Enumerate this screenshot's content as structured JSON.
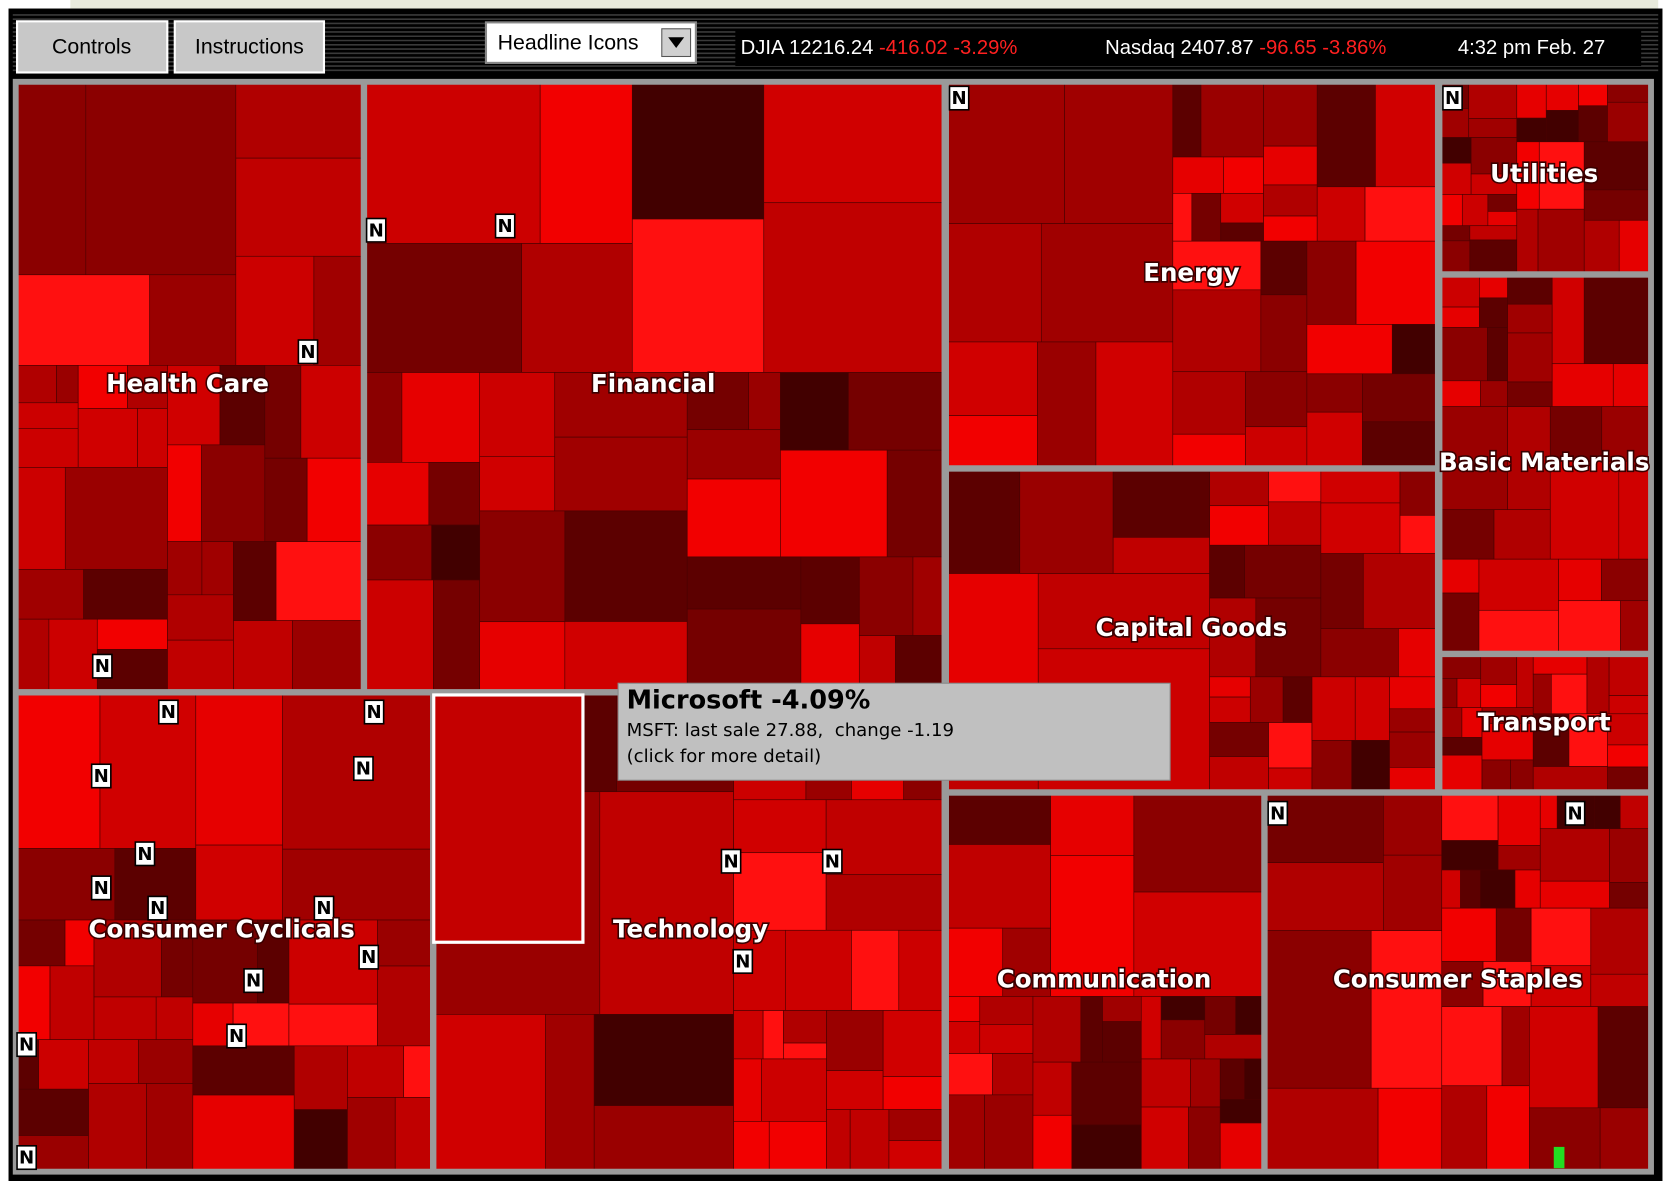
{
  "toolbar": {
    "controls_button": "Controls",
    "instructions_button": "Instructions",
    "view_select": "Headline Icons"
  },
  "ticker": {
    "djia": {
      "label": "DJIA 12216.24",
      "change": "-416.02",
      "percent": "-3.29%"
    },
    "nasdaq": {
      "label": "Nasdaq 2407.87",
      "change": "-96.65",
      "percent": "-3.86%"
    },
    "time": "4:32 pm",
    "date": "Feb. 27"
  },
  "sectors": [
    {
      "label": "Health Care"
    },
    {
      "label": "Financial"
    },
    {
      "label": "Energy"
    },
    {
      "label": "Utilities"
    },
    {
      "label": "Basic Materials"
    },
    {
      "label": "Capital Goods"
    },
    {
      "label": "Transport"
    },
    {
      "label": "Consumer Cyclicals"
    },
    {
      "label": "Technology"
    },
    {
      "label": "Communication"
    },
    {
      "label": "Consumer Staples"
    }
  ],
  "tooltip": {
    "title": "Microsoft -4.09%",
    "detail": "MSFT: last sale 27.88,  change -1.19",
    "hint": "(click for more detail)"
  },
  "news_icon": "N"
}
